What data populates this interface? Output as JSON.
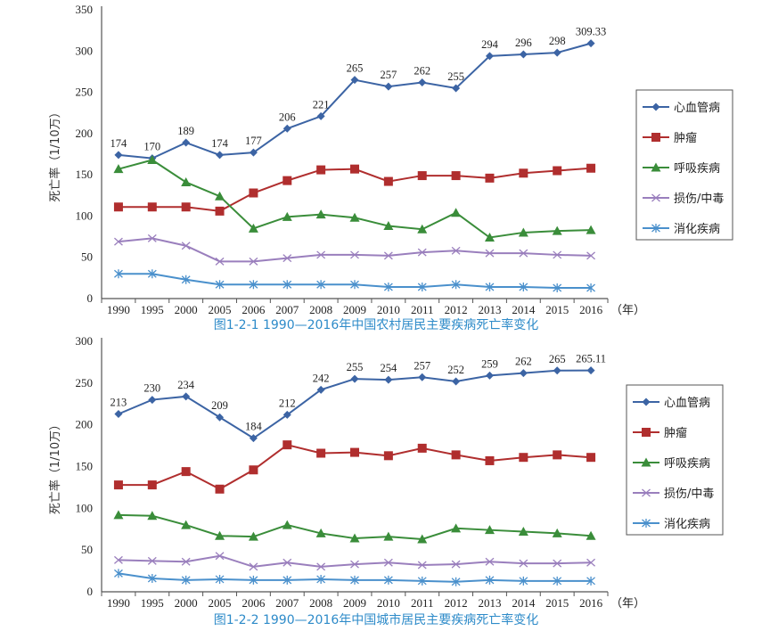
{
  "chart_data": [
    {
      "type": "line",
      "id": "rural",
      "title": "图1-2-1   1990—2016年中国农村居民主要疾病死亡率变化",
      "xlabel": "（年）",
      "ylabel": "死亡率（1/10万）",
      "ylim": [
        0,
        350
      ],
      "yticks": [
        0,
        50,
        100,
        150,
        200,
        250,
        300,
        350
      ],
      "categories": [
        "1990",
        "1995",
        "2000",
        "2005",
        "2006",
        "2007",
        "2008",
        "2009",
        "2010",
        "2011",
        "2012",
        "2013",
        "2014",
        "2015",
        "2016"
      ],
      "grid": false,
      "legend_position": "right",
      "series": [
        {
          "name": "心血管病",
          "color": "#3c64a4",
          "marker": "diamond",
          "values": [
            174,
            170,
            189,
            174,
            177,
            206,
            221,
            265,
            257,
            262,
            255,
            294,
            296,
            298,
            309.33
          ],
          "labels": [
            "174",
            "170",
            "189",
            "174",
            "177",
            "206",
            "221",
            "265",
            "257",
            "262",
            "255",
            "294",
            "296",
            "298",
            "309.33"
          ]
        },
        {
          "name": "肿瘤",
          "color": "#b02e2e",
          "marker": "square",
          "values": [
            111,
            111,
            111,
            106,
            128,
            143,
            156,
            157,
            142,
            149,
            149,
            146,
            152,
            155,
            158
          ]
        },
        {
          "name": "呼吸疾病",
          "color": "#3a8d3a",
          "marker": "triangle",
          "values": [
            157,
            168,
            141,
            124,
            85,
            99,
            102,
            98,
            88,
            84,
            104,
            74,
            80,
            82,
            83
          ]
        },
        {
          "name": "损伤/中毒",
          "color": "#9a7fbd",
          "marker": "x",
          "values": [
            69,
            73,
            64,
            45,
            45,
            49,
            53,
            53,
            52,
            56,
            58,
            55,
            55,
            53,
            52
          ]
        },
        {
          "name": "消化疾病",
          "color": "#4a90cc",
          "marker": "asterisk",
          "values": [
            30,
            30,
            23,
            17,
            17,
            17,
            17,
            17,
            14,
            14,
            17,
            14,
            14,
            13,
            13
          ]
        }
      ]
    },
    {
      "type": "line",
      "id": "urban",
      "title": "图1-2-2   1990—2016年中国城市居民主要疾病死亡率变化",
      "xlabel": "（年）",
      "ylabel": "死亡率（1/10万）",
      "ylim": [
        0,
        300
      ],
      "yticks": [
        0,
        50,
        100,
        150,
        200,
        250,
        300
      ],
      "categories": [
        "1990",
        "1995",
        "2000",
        "2005",
        "2006",
        "2007",
        "2008",
        "2009",
        "2010",
        "2011",
        "2012",
        "2013",
        "2014",
        "2015",
        "2016"
      ],
      "grid": false,
      "legend_position": "right",
      "series": [
        {
          "name": "心血管病",
          "color": "#3c64a4",
          "marker": "diamond",
          "values": [
            213,
            230,
            234,
            209,
            184,
            212,
            242,
            255,
            254,
            257,
            252,
            259,
            262,
            265,
            265.11
          ],
          "labels": [
            "213",
            "230",
            "234",
            "209",
            "184",
            "212",
            "242",
            "255",
            "254",
            "257",
            "252",
            "259",
            "262",
            "265",
            "265.11"
          ]
        },
        {
          "name": "肿瘤",
          "color": "#b02e2e",
          "marker": "square",
          "values": [
            128,
            128,
            144,
            123,
            146,
            176,
            166,
            167,
            163,
            172,
            164,
            157,
            161,
            164,
            161
          ]
        },
        {
          "name": "呼吸疾病",
          "color": "#3a8d3a",
          "marker": "triangle",
          "values": [
            92,
            91,
            80,
            67,
            66,
            80,
            70,
            64,
            66,
            63,
            76,
            74,
            72,
            70,
            67
          ]
        },
        {
          "name": "损伤/中毒",
          "color": "#9a7fbd",
          "marker": "x",
          "values": [
            38,
            37,
            36,
            43,
            30,
            35,
            30,
            33,
            35,
            32,
            33,
            36,
            34,
            34,
            35
          ]
        },
        {
          "name": "消化疾病",
          "color": "#4a90cc",
          "marker": "asterisk",
          "values": [
            22,
            16,
            14,
            15,
            14,
            14,
            15,
            14,
            14,
            13,
            12,
            14,
            13,
            13,
            13
          ]
        }
      ]
    }
  ]
}
